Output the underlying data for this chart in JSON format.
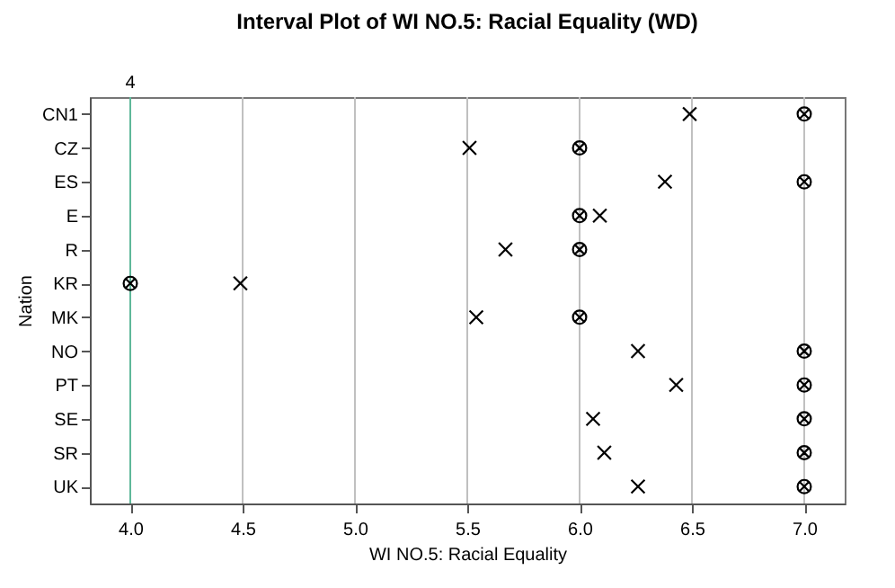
{
  "chart_data": {
    "type": "scatter",
    "title": "Interval Plot of WI NO.5: Racial Equality (WD)",
    "xlabel": "WI NO.5: Racial Equality",
    "ylabel": "Nation",
    "orientation": "horizontal",
    "categories": [
      "CN1",
      "CZ",
      "ES",
      "E",
      "R",
      "KR",
      "MK",
      "NO",
      "PT",
      "SE",
      "SR",
      "UK"
    ],
    "series": [
      {
        "color": "#000000",
        "marker": "cross",
        "values": [
          6.49,
          5.51,
          6.38,
          6.09,
          5.67,
          4.49,
          5.54,
          6.26,
          6.43,
          6.06,
          6.11,
          6.26
        ]
      },
      {
        "color": "#000000",
        "values": [
          7,
          6,
          7,
          6,
          6,
          4,
          6,
          7,
          7,
          7,
          7,
          7
        ]
      }
    ],
    "xlim": [
      3.82,
      7.18
    ],
    "xticks": [
      {
        "value": 4,
        "label": "4.0"
      },
      {
        "value": 4.5,
        "label": "4.5"
      },
      {
        "value": 5,
        "label": "5.0"
      },
      {
        "value": 5.5,
        "label": "5.5"
      },
      {
        "value": 6,
        "label": "6.0"
      },
      {
        "value": 6.5,
        "label": "6.5"
      },
      {
        "value": 7,
        "label": "7.0"
      }
    ],
    "grid": "x",
    "ref_lines": [
      {
        "axis": "x",
        "value": 4,
        "label": "4",
        "color": "#5fb89a"
      }
    ]
  }
}
